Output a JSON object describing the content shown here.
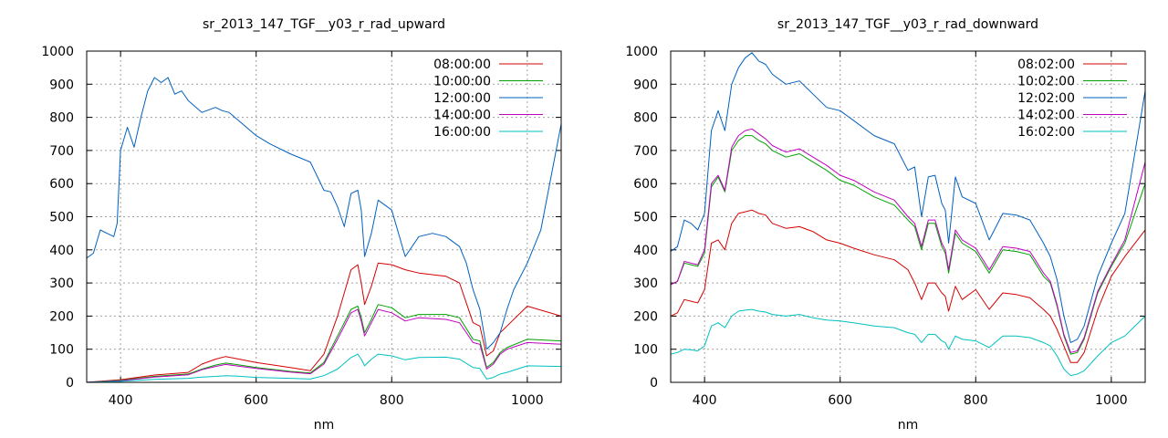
{
  "chart_data": [
    {
      "type": "line",
      "title": "sr_2013_147_TGF__y03_r_rad_upward",
      "xlabel": "nm",
      "ylabel": "",
      "xlim": [
        350,
        1050
      ],
      "ylim": [
        0,
        1000
      ],
      "xticks": [
        400,
        600,
        800,
        1000
      ],
      "yticks": [
        0,
        100,
        200,
        300,
        400,
        500,
        600,
        700,
        800,
        900,
        1000
      ],
      "grid": true,
      "legend_position": "top-right",
      "series": [
        {
          "name": "08:00:00",
          "color": "#d40000",
          "x": [
            350,
            400,
            450,
            500,
            520,
            540,
            555,
            570,
            600,
            650,
            680,
            700,
            720,
            740,
            750,
            755,
            760,
            770,
            780,
            800,
            820,
            840,
            880,
            900,
            920,
            930,
            940,
            950,
            960,
            970,
            1000,
            1050
          ],
          "y": [
            0,
            8,
            22,
            30,
            55,
            70,
            78,
            72,
            60,
            45,
            35,
            85,
            200,
            340,
            355,
            300,
            235,
            290,
            360,
            355,
            340,
            330,
            320,
            300,
            180,
            170,
            80,
            95,
            150,
            170,
            230,
            200
          ]
        },
        {
          "name": "10:00:00",
          "color": "#00a000",
          "x": [
            350,
            400,
            450,
            500,
            520,
            540,
            555,
            570,
            600,
            650,
            680,
            700,
            720,
            740,
            750,
            755,
            760,
            770,
            780,
            800,
            820,
            840,
            880,
            900,
            920,
            930,
            940,
            950,
            960,
            970,
            1000,
            1050
          ],
          "y": [
            0,
            6,
            18,
            25,
            40,
            52,
            58,
            54,
            45,
            33,
            28,
            60,
            140,
            220,
            230,
            195,
            150,
            190,
            235,
            225,
            195,
            205,
            205,
            195,
            130,
            125,
            45,
            60,
            90,
            105,
            130,
            125
          ]
        },
        {
          "name": "12:00:00",
          "color": "#0060c0",
          "x": [
            350,
            360,
            370,
            380,
            390,
            395,
            400,
            410,
            420,
            430,
            440,
            450,
            460,
            470,
            480,
            490,
            500,
            520,
            540,
            550,
            560,
            580,
            600,
            620,
            650,
            680,
            700,
            710,
            720,
            730,
            740,
            750,
            755,
            760,
            770,
            780,
            800,
            820,
            840,
            860,
            880,
            900,
            910,
            920,
            930,
            940,
            950,
            960,
            970,
            980,
            1000,
            1020,
            1050
          ],
          "y": [
            375,
            390,
            460,
            450,
            440,
            480,
            700,
            770,
            710,
            800,
            880,
            920,
            905,
            920,
            870,
            880,
            850,
            815,
            830,
            820,
            815,
            780,
            745,
            720,
            690,
            665,
            580,
            575,
            530,
            470,
            570,
            580,
            520,
            380,
            450,
            550,
            520,
            380,
            440,
            450,
            440,
            410,
            360,
            280,
            220,
            100,
            120,
            150,
            220,
            280,
            360,
            460,
            780
          ]
        },
        {
          "name": "14:00:00",
          "color": "#c000c0",
          "x": [
            350,
            400,
            450,
            500,
            520,
            540,
            555,
            570,
            600,
            650,
            680,
            700,
            720,
            740,
            750,
            755,
            760,
            770,
            780,
            800,
            820,
            840,
            880,
            900,
            920,
            930,
            940,
            950,
            960,
            970,
            1000,
            1050
          ],
          "y": [
            0,
            5,
            16,
            23,
            38,
            48,
            54,
            50,
            42,
            31,
            26,
            55,
            130,
            210,
            220,
            185,
            140,
            180,
            220,
            210,
            185,
            195,
            190,
            180,
            120,
            115,
            40,
            55,
            85,
            100,
            120,
            115
          ]
        },
        {
          "name": "16:00:00",
          "color": "#00c0c0",
          "x": [
            350,
            400,
            450,
            500,
            520,
            540,
            555,
            570,
            600,
            650,
            680,
            700,
            720,
            740,
            750,
            755,
            760,
            770,
            780,
            800,
            820,
            840,
            880,
            900,
            920,
            930,
            940,
            950,
            960,
            970,
            1000,
            1050
          ],
          "y": [
            0,
            3,
            9,
            12,
            16,
            18,
            20,
            19,
            15,
            12,
            10,
            20,
            40,
            75,
            85,
            70,
            50,
            70,
            85,
            80,
            68,
            75,
            76,
            70,
            45,
            42,
            10,
            15,
            25,
            30,
            50,
            48
          ]
        }
      ]
    },
    {
      "type": "line",
      "title": "sr_2013_147_TGF__y03_r_rad_downward",
      "xlabel": "nm",
      "ylabel": "",
      "xlim": [
        350,
        1050
      ],
      "ylim": [
        0,
        1000
      ],
      "xticks": [
        400,
        600,
        800,
        1000
      ],
      "yticks": [
        0,
        100,
        200,
        300,
        400,
        500,
        600,
        700,
        800,
        900,
        1000
      ],
      "grid": true,
      "legend_position": "top-right",
      "series": [
        {
          "name": "08:02:00",
          "color": "#d40000",
          "x": [
            350,
            360,
            370,
            380,
            390,
            400,
            410,
            420,
            430,
            440,
            450,
            460,
            470,
            480,
            490,
            500,
            520,
            540,
            560,
            580,
            600,
            620,
            650,
            680,
            700,
            710,
            720,
            730,
            740,
            750,
            755,
            760,
            770,
            780,
            800,
            820,
            840,
            860,
            880,
            900,
            910,
            920,
            930,
            940,
            950,
            960,
            980,
            1000,
            1020,
            1050
          ],
          "y": [
            200,
            210,
            250,
            245,
            240,
            280,
            420,
            430,
            400,
            480,
            510,
            515,
            520,
            510,
            505,
            480,
            465,
            470,
            455,
            430,
            420,
            405,
            385,
            370,
            340,
            300,
            250,
            300,
            300,
            270,
            260,
            215,
            290,
            250,
            280,
            220,
            270,
            265,
            255,
            220,
            200,
            160,
            110,
            60,
            60,
            90,
            220,
            320,
            380,
            460
          ]
        },
        {
          "name": "10:02:00",
          "color": "#00a000",
          "x": [
            350,
            360,
            370,
            380,
            390,
            400,
            410,
            420,
            430,
            440,
            450,
            460,
            470,
            480,
            490,
            500,
            520,
            540,
            560,
            580,
            600,
            620,
            650,
            680,
            700,
            710,
            720,
            730,
            740,
            750,
            755,
            760,
            770,
            780,
            800,
            820,
            840,
            860,
            880,
            900,
            910,
            920,
            930,
            940,
            950,
            960,
            980,
            1000,
            1020,
            1050
          ],
          "y": [
            295,
            305,
            360,
            355,
            350,
            390,
            590,
            620,
            575,
            700,
            730,
            745,
            745,
            730,
            720,
            700,
            680,
            690,
            665,
            640,
            610,
            595,
            560,
            535,
            490,
            470,
            400,
            480,
            480,
            410,
            390,
            330,
            450,
            420,
            395,
            330,
            400,
            395,
            385,
            320,
            300,
            230,
            140,
            85,
            90,
            130,
            270,
            350,
            420,
            600
          ]
        },
        {
          "name": "12:02:00",
          "color": "#0060c0",
          "x": [
            350,
            360,
            370,
            380,
            390,
            400,
            410,
            420,
            430,
            440,
            450,
            460,
            470,
            480,
            490,
            500,
            520,
            540,
            560,
            580,
            600,
            620,
            650,
            680,
            700,
            710,
            720,
            730,
            740,
            750,
            755,
            760,
            770,
            780,
            800,
            820,
            840,
            860,
            880,
            900,
            910,
            920,
            930,
            940,
            950,
            960,
            980,
            1000,
            1020,
            1050
          ],
          "y": [
            395,
            410,
            490,
            480,
            460,
            510,
            760,
            820,
            760,
            900,
            950,
            980,
            995,
            970,
            960,
            930,
            900,
            910,
            870,
            830,
            820,
            790,
            745,
            720,
            640,
            650,
            500,
            620,
            625,
            540,
            520,
            420,
            620,
            560,
            540,
            430,
            510,
            505,
            490,
            420,
            380,
            310,
            200,
            120,
            130,
            170,
            320,
            420,
            510,
            880
          ]
        },
        {
          "name": "14:02:00",
          "color": "#c000c0",
          "x": [
            350,
            360,
            370,
            380,
            390,
            400,
            410,
            420,
            430,
            440,
            450,
            460,
            470,
            480,
            490,
            500,
            520,
            540,
            560,
            580,
            600,
            620,
            650,
            680,
            700,
            710,
            720,
            730,
            740,
            750,
            755,
            760,
            770,
            780,
            800,
            820,
            840,
            860,
            880,
            900,
            910,
            920,
            930,
            940,
            950,
            960,
            980,
            1000,
            1020,
            1050
          ],
          "y": [
            295,
            305,
            365,
            360,
            355,
            400,
            600,
            625,
            580,
            710,
            745,
            760,
            765,
            750,
            735,
            715,
            695,
            705,
            680,
            655,
            625,
            610,
            575,
            550,
            500,
            480,
            410,
            490,
            490,
            420,
            400,
            340,
            460,
            430,
            405,
            340,
            410,
            405,
            395,
            330,
            305,
            235,
            145,
            90,
            95,
            135,
            275,
            355,
            430,
            665
          ]
        },
        {
          "name": "16:02:00",
          "color": "#00c0c0",
          "x": [
            350,
            360,
            370,
            380,
            390,
            400,
            410,
            420,
            430,
            440,
            450,
            460,
            470,
            480,
            490,
            500,
            520,
            540,
            560,
            580,
            600,
            620,
            650,
            680,
            700,
            710,
            720,
            730,
            740,
            750,
            755,
            760,
            770,
            780,
            800,
            820,
            840,
            860,
            880,
            900,
            910,
            920,
            930,
            940,
            950,
            960,
            980,
            1000,
            1020,
            1050
          ],
          "y": [
            85,
            90,
            100,
            98,
            95,
            110,
            170,
            180,
            165,
            200,
            215,
            218,
            220,
            215,
            212,
            205,
            200,
            205,
            195,
            188,
            185,
            180,
            170,
            165,
            150,
            145,
            120,
            145,
            145,
            125,
            120,
            100,
            140,
            130,
            125,
            105,
            140,
            140,
            135,
            120,
            110,
            80,
            40,
            20,
            25,
            35,
            80,
            120,
            140,
            200
          ]
        }
      ]
    }
  ]
}
